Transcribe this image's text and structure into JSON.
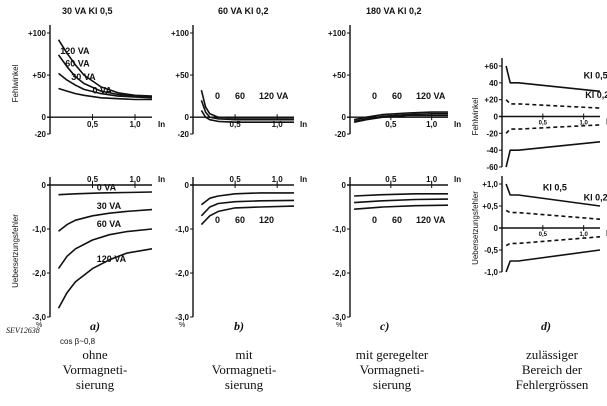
{
  "source_ref": "SEV12638",
  "cos_label": "cos β~0,8",
  "chart_data": [
    {
      "id": "a",
      "type": "line",
      "panel_label": "a)",
      "caption": [
        "ohne",
        "Vormagneti-",
        "sierung"
      ],
      "top": {
        "title": "30 VA Kl 0,5",
        "ylabel": "Fehlwinkel",
        "xlabel": "In",
        "ylim": [
          -20,
          100
        ],
        "yticks": [
          "+100",
          "+50",
          "0",
          "-20"
        ],
        "xticks": [
          "0,5",
          "1,0"
        ],
        "xlim": [
          0,
          1.2
        ],
        "series": [
          {
            "name": "120 VA",
            "x": [
              0.1,
              0.2,
              0.3,
              0.4,
              0.6,
              0.8,
              1.0,
              1.2
            ],
            "y": [
              92,
              76,
              62,
              50,
              36,
              29,
              26,
              25
            ]
          },
          {
            "name": "60 VA",
            "x": [
              0.1,
              0.2,
              0.3,
              0.4,
              0.6,
              0.8,
              1.0,
              1.2
            ],
            "y": [
              74,
              60,
              48,
              40,
              31,
              27,
              25,
              24
            ]
          },
          {
            "name": "30 VA",
            "x": [
              0.1,
              0.2,
              0.3,
              0.4,
              0.6,
              0.8,
              1.0,
              1.2
            ],
            "y": [
              52,
              44,
              38,
              33,
              28,
              25,
              24,
              23
            ]
          },
          {
            "name": "0 VA",
            "x": [
              0.1,
              0.2,
              0.3,
              0.4,
              0.6,
              0.8,
              1.0,
              1.2
            ],
            "y": [
              34,
              31,
              28,
              26,
              23,
              22,
              21,
              21
            ]
          }
        ]
      },
      "bottom": {
        "ylabel": "Uebersetzungsfehler",
        "unit": "%",
        "xlabel": "In",
        "ylim": [
          -3,
          0
        ],
        "yticks": [
          "0",
          "-1,0",
          "-2,0",
          "-3,0"
        ],
        "xticks": [
          "0,5",
          "1,0"
        ],
        "xlim": [
          0,
          1.2
        ],
        "series": [
          {
            "name": "0 VA",
            "x": [
              0.1,
              0.3,
              0.6,
              0.9,
              1.2
            ],
            "y": [
              -0.22,
              -0.2,
              -0.18,
              -0.17,
              -0.16
            ]
          },
          {
            "name": "30 VA",
            "x": [
              0.1,
              0.2,
              0.3,
              0.5,
              0.7,
              0.9,
              1.2
            ],
            "y": [
              -1.05,
              -0.9,
              -0.8,
              -0.7,
              -0.64,
              -0.6,
              -0.56
            ]
          },
          {
            "name": "60 VA",
            "x": [
              0.1,
              0.2,
              0.3,
              0.5,
              0.7,
              0.9,
              1.2
            ],
            "y": [
              -1.9,
              -1.62,
              -1.45,
              -1.25,
              -1.13,
              -1.06,
              -1.0
            ]
          },
          {
            "name": "120 VA",
            "x": [
              0.1,
              0.2,
              0.3,
              0.5,
              0.7,
              0.9,
              1.2
            ],
            "y": [
              -2.8,
              -2.45,
              -2.2,
              -1.9,
              -1.7,
              -1.55,
              -1.45
            ]
          }
        ]
      }
    },
    {
      "id": "b",
      "type": "line",
      "panel_label": "b)",
      "caption": [
        "mit",
        "Vormagneti-",
        "sierung"
      ],
      "top": {
        "title": "60 VA Kl 0,2",
        "xlabel": "In",
        "ylim": [
          -20,
          100
        ],
        "yticks": [
          "+100",
          "+50",
          "0",
          "-20"
        ],
        "xticks": [
          "0,5",
          "1,0"
        ],
        "xlim": [
          0,
          1.2
        ],
        "curve_labels": [
          "0",
          "60",
          "120 VA"
        ],
        "series": [
          {
            "name": "0",
            "x": [
              0.1,
              0.15,
              0.2,
              0.3,
              0.5,
              0.8,
              1.2
            ],
            "y": [
              32,
              12,
              4,
              0,
              -1,
              -1,
              -1
            ]
          },
          {
            "name": "60",
            "x": [
              0.1,
              0.15,
              0.2,
              0.3,
              0.5,
              0.8,
              1.2
            ],
            "y": [
              20,
              6,
              0,
              -2,
              -3,
              -3,
              -3
            ]
          },
          {
            "name": "120 VA",
            "x": [
              0.1,
              0.15,
              0.2,
              0.3,
              0.5,
              0.8,
              1.2
            ],
            "y": [
              8,
              0,
              -3,
              -5,
              -6,
              -6,
              -6
            ]
          }
        ]
      },
      "bottom": {
        "unit": "%",
        "xlabel": "In",
        "ylim": [
          -3,
          0
        ],
        "yticks": [
          "0",
          "-1,0",
          "-2,0",
          "-3,0"
        ],
        "xticks": [
          "0,5",
          "1,0"
        ],
        "xlim": [
          0,
          1.2
        ],
        "curve_labels": [
          "0",
          "60",
          "120"
        ],
        "series": [
          {
            "name": "0",
            "x": [
              0.1,
              0.2,
              0.3,
              0.5,
              0.8,
              1.2
            ],
            "y": [
              -0.45,
              -0.3,
              -0.25,
              -0.2,
              -0.18,
              -0.18
            ]
          },
          {
            "name": "60",
            "x": [
              0.1,
              0.2,
              0.3,
              0.5,
              0.8,
              1.2
            ],
            "y": [
              -0.7,
              -0.5,
              -0.42,
              -0.38,
              -0.36,
              -0.35
            ]
          },
          {
            "name": "120",
            "x": [
              0.1,
              0.2,
              0.3,
              0.5,
              0.8,
              1.2
            ],
            "y": [
              -0.9,
              -0.7,
              -0.6,
              -0.52,
              -0.5,
              -0.48
            ]
          }
        ]
      }
    },
    {
      "id": "c",
      "type": "line",
      "panel_label": "c)",
      "caption": [
        "mit geregelter",
        "Vormagneti-",
        "sierung"
      ],
      "top": {
        "title": "180 VA Kl 0,2",
        "xlabel": "In",
        "ylim": [
          -20,
          100
        ],
        "yticks": [
          "+100",
          "+50",
          "0",
          "-20"
        ],
        "xticks": [
          "0,5",
          "1,0"
        ],
        "xlim": [
          0,
          1.2
        ],
        "curve_labels": [
          "0",
          "60",
          "120 VA"
        ],
        "series": [
          {
            "name": "0",
            "x": [
              0.05,
              0.2,
              0.4,
              0.7,
              1.0,
              1.2
            ],
            "y": [
              -3,
              0,
              3,
              5,
              6,
              6
            ]
          },
          {
            "name": "60",
            "x": [
              0.05,
              0.2,
              0.4,
              0.7,
              1.0,
              1.2
            ],
            "y": [
              -5,
              -2,
              1,
              3,
              4,
              4
            ]
          },
          {
            "name": "120 VA",
            "x": [
              0.05,
              0.2,
              0.4,
              0.7,
              1.0,
              1.2
            ],
            "y": [
              -6,
              -3,
              0,
              2,
              2,
              2
            ]
          }
        ]
      },
      "bottom": {
        "unit": "%",
        "xlabel": "In",
        "ylim": [
          -3,
          0
        ],
        "yticks": [
          "0",
          "-1,0",
          "-2,0",
          "-3,0"
        ],
        "xticks": [
          "0,5",
          "1,0"
        ],
        "xlim": [
          0,
          1.2
        ],
        "curve_labels": [
          "0",
          "60",
          "120 VA"
        ],
        "series": [
          {
            "name": "0",
            "x": [
              0.05,
              0.4,
              0.8,
              1.2
            ],
            "y": [
              -0.25,
              -0.22,
              -0.2,
              -0.2
            ]
          },
          {
            "name": "60",
            "x": [
              0.05,
              0.4,
              0.8,
              1.2
            ],
            "y": [
              -0.4,
              -0.36,
              -0.33,
              -0.32
            ]
          },
          {
            "name": "120 VA",
            "x": [
              0.05,
              0.4,
              0.8,
              1.2
            ],
            "y": [
              -0.55,
              -0.5,
              -0.47,
              -0.46
            ]
          }
        ]
      }
    },
    {
      "id": "d",
      "type": "line",
      "panel_label": "d)",
      "caption": [
        "zulässiger",
        "Bereich der",
        "Fehlergrössen"
      ],
      "top": {
        "ylabel": "Fehlwinkel",
        "xlabel": "I",
        "ylim": [
          -60,
          60
        ],
        "yticks": [
          "+60",
          "40",
          "+20",
          "0",
          "-20",
          "-40",
          "-60"
        ],
        "xticks": [
          "0,5",
          "1,0"
        ],
        "xlim": [
          0,
          1.2
        ],
        "series": [
          {
            "name": "Kl 0,5",
            "x": [
              0.05,
              0.1,
              0.2,
              1.2
            ],
            "y": [
              60,
              40,
              40,
              30
            ],
            "style": "solid"
          },
          {
            "name": "Kl 0,2",
            "x": [
              0.05,
              0.1,
              0.2,
              1.2
            ],
            "y": [
              20,
              15,
              15,
              10
            ],
            "style": "dashed"
          },
          {
            "name": "Kl 0,2 (-)",
            "x": [
              0.05,
              0.1,
              0.2,
              1.2
            ],
            "y": [
              -20,
              -15,
              -15,
              -10
            ],
            "style": "dashed"
          },
          {
            "name": "Kl 0,5 (-)",
            "x": [
              0.05,
              0.1,
              0.2,
              1.2
            ],
            "y": [
              -60,
              -40,
              -40,
              -30
            ],
            "style": "solid"
          }
        ]
      },
      "bottom": {
        "ylabel": "Uebersetzungsfehler",
        "xlabel": "I",
        "ylim": [
          -1,
          1
        ],
        "yticks": [
          "+1,0",
          "+0,5",
          "0",
          "-0,5",
          "-1,0"
        ],
        "xticks": [
          "0,5",
          "1,0"
        ],
        "xlim": [
          0,
          1.2
        ],
        "series": [
          {
            "name": "Kl 0,5",
            "x": [
              0.05,
              0.1,
              0.2,
              1.2
            ],
            "y": [
              1.0,
              0.75,
              0.75,
              0.5
            ],
            "style": "solid"
          },
          {
            "name": "Kl 0,2",
            "x": [
              0.05,
              0.1,
              0.2,
              1.2
            ],
            "y": [
              0.4,
              0.35,
              0.35,
              0.2
            ],
            "style": "dashed"
          },
          {
            "name": "Kl 0,2 (-)",
            "x": [
              0.05,
              0.1,
              0.2,
              1.2
            ],
            "y": [
              -0.4,
              -0.35,
              -0.35,
              -0.2
            ],
            "style": "dashed"
          },
          {
            "name": "Kl 0,5 (-)",
            "x": [
              0.05,
              0.1,
              0.2,
              1.2
            ],
            "y": [
              -1.0,
              -0.75,
              -0.75,
              -0.5
            ],
            "style": "solid"
          }
        ]
      }
    }
  ]
}
